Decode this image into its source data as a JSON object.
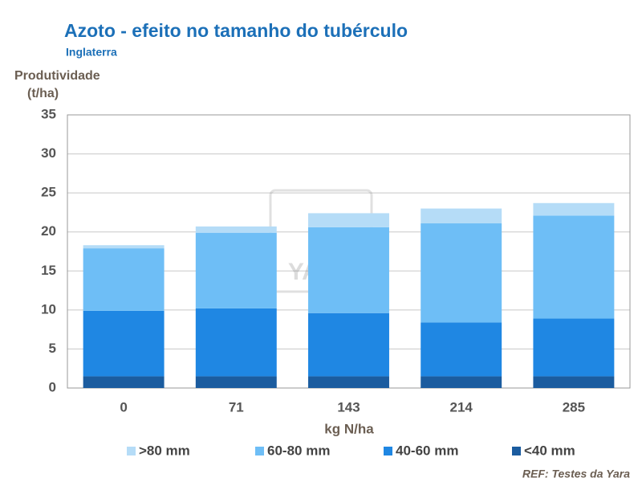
{
  "chart_data": {
    "type": "stacked_bar",
    "title": "Azoto - efeito no tamanho do tubérculo",
    "subtitle": "Inglaterra",
    "ylabel_lines": [
      "Produtividade",
      "(t/ha)"
    ],
    "xlabel": "kg N/ha",
    "source": "REF: Testes da Yara",
    "watermark": "YARA",
    "categories": [
      "0",
      "71",
      "143",
      "214",
      "285"
    ],
    "series": [
      {
        "name": "<40 mm",
        "color": "#1b5c9f",
        "values": [
          1.5,
          1.5,
          1.5,
          1.5,
          1.5
        ]
      },
      {
        "name": "40-60 mm",
        "color": "#1f87e3",
        "values": [
          8.4,
          8.7,
          8.1,
          6.9,
          7.4
        ]
      },
      {
        "name": "60-80 mm",
        "color": "#6ebef6",
        "values": [
          8.0,
          9.7,
          11.0,
          12.7,
          13.2
        ]
      },
      {
        "name": ">80 mm",
        "color": "#b5dcf7",
        "values": [
          0.4,
          0.8,
          1.8,
          1.9,
          1.6
        ]
      }
    ],
    "ylim": [
      0,
      35
    ],
    "yticks": [
      0,
      5,
      10,
      15,
      20,
      25,
      30,
      35
    ],
    "grid": true
  }
}
